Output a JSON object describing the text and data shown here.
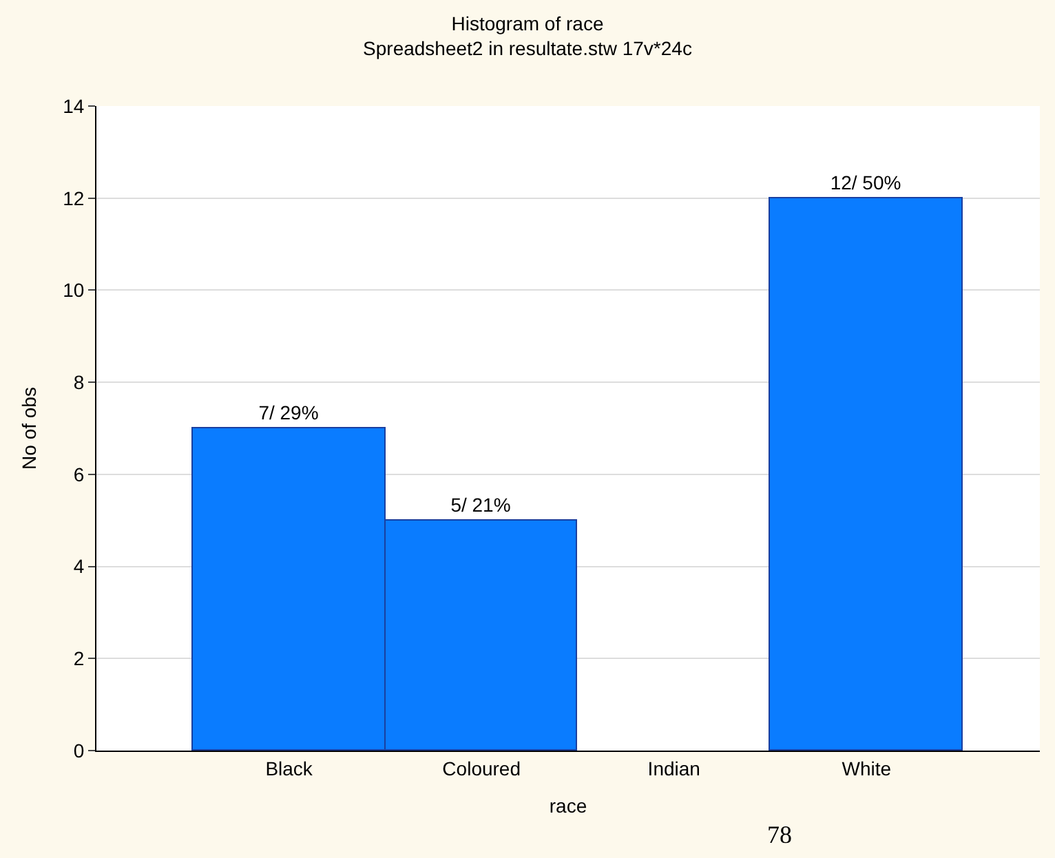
{
  "chart_data": {
    "type": "bar",
    "title": "Histogram of race",
    "subtitle": "Spreadsheet2 in resultate.stw 17v*24c",
    "xlabel": "race",
    "ylabel": "No of obs",
    "categories": [
      "Black",
      "Coloured",
      "Indian",
      "White"
    ],
    "values": [
      7,
      5,
      0,
      12
    ],
    "value_labels": [
      "7/ 29%",
      "5/ 21%",
      null,
      "12/ 50%"
    ],
    "color": "#0a7cff",
    "ylim": [
      0,
      14
    ],
    "yticks": [
      0,
      2,
      4,
      6,
      8,
      10,
      12,
      14
    ],
    "grid": "y",
    "legend": false,
    "annotations": [
      "78"
    ]
  }
}
